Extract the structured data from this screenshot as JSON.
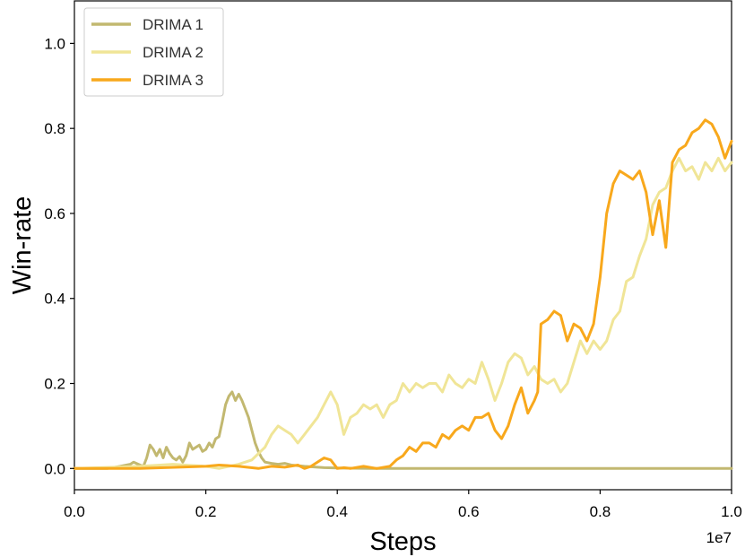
{
  "chart_data": {
    "type": "line",
    "xlabel": "Steps",
    "ylabel": "Win-rate",
    "x_offset_label": "1e7",
    "xlim": [
      0.0,
      1.0
    ],
    "ylim": [
      -0.05,
      1.1
    ],
    "x_ticks": [
      "0.0",
      "0.2",
      "0.4",
      "0.6",
      "0.8",
      "1.0"
    ],
    "y_ticks": [
      "0.0",
      "0.2",
      "0.4",
      "0.6",
      "0.8",
      "1.0"
    ],
    "grid": false,
    "legend_position": "top-left",
    "series": [
      {
        "name": "DRIMA 1",
        "color": "#c2b870",
        "x": [
          0.0,
          0.05,
          0.07,
          0.085,
          0.09,
          0.1,
          0.105,
          0.11,
          0.115,
          0.12,
          0.125,
          0.13,
          0.135,
          0.14,
          0.145,
          0.15,
          0.155,
          0.16,
          0.165,
          0.17,
          0.175,
          0.18,
          0.185,
          0.19,
          0.195,
          0.2,
          0.205,
          0.21,
          0.215,
          0.22,
          0.225,
          0.23,
          0.235,
          0.24,
          0.245,
          0.25,
          0.255,
          0.26,
          0.265,
          0.27,
          0.275,
          0.28,
          0.285,
          0.29,
          0.3,
          0.31,
          0.32,
          0.33,
          0.35,
          0.38,
          0.4,
          0.45,
          0.5,
          0.6,
          0.7,
          0.8,
          0.9,
          1.0
        ],
        "values": [
          0.0,
          0.0,
          0.005,
          0.01,
          0.015,
          0.008,
          0.005,
          0.025,
          0.055,
          0.045,
          0.03,
          0.045,
          0.025,
          0.05,
          0.035,
          0.025,
          0.02,
          0.028,
          0.015,
          0.03,
          0.06,
          0.045,
          0.05,
          0.055,
          0.04,
          0.045,
          0.06,
          0.05,
          0.07,
          0.075,
          0.11,
          0.15,
          0.17,
          0.18,
          0.16,
          0.175,
          0.16,
          0.14,
          0.12,
          0.09,
          0.06,
          0.04,
          0.025,
          0.015,
          0.012,
          0.01,
          0.012,
          0.008,
          0.005,
          0.002,
          0.001,
          0.0,
          0.0,
          0.0,
          0.0,
          0.0,
          0.0,
          0.0
        ]
      },
      {
        "name": "DRIMA 2",
        "color": "#f0e597",
        "x": [
          0.0,
          0.1,
          0.15,
          0.2,
          0.22,
          0.25,
          0.27,
          0.29,
          0.3,
          0.31,
          0.32,
          0.33,
          0.34,
          0.35,
          0.36,
          0.37,
          0.38,
          0.39,
          0.4,
          0.41,
          0.42,
          0.43,
          0.44,
          0.45,
          0.46,
          0.47,
          0.48,
          0.49,
          0.5,
          0.51,
          0.52,
          0.53,
          0.54,
          0.55,
          0.56,
          0.57,
          0.58,
          0.59,
          0.6,
          0.61,
          0.62,
          0.63,
          0.64,
          0.65,
          0.66,
          0.67,
          0.68,
          0.69,
          0.7,
          0.71,
          0.72,
          0.73,
          0.74,
          0.75,
          0.76,
          0.77,
          0.78,
          0.79,
          0.8,
          0.81,
          0.82,
          0.83,
          0.84,
          0.85,
          0.86,
          0.87,
          0.88,
          0.89,
          0.9,
          0.91,
          0.92,
          0.93,
          0.94,
          0.95,
          0.96,
          0.97,
          0.98,
          0.99,
          1.0
        ],
        "values": [
          0.0,
          0.005,
          0.01,
          0.005,
          0.0,
          0.01,
          0.02,
          0.05,
          0.08,
          0.1,
          0.09,
          0.08,
          0.06,
          0.08,
          0.1,
          0.12,
          0.15,
          0.18,
          0.15,
          0.08,
          0.12,
          0.13,
          0.15,
          0.14,
          0.15,
          0.12,
          0.15,
          0.16,
          0.2,
          0.18,
          0.2,
          0.19,
          0.2,
          0.2,
          0.18,
          0.22,
          0.2,
          0.19,
          0.21,
          0.2,
          0.25,
          0.21,
          0.16,
          0.2,
          0.25,
          0.27,
          0.26,
          0.22,
          0.24,
          0.21,
          0.2,
          0.21,
          0.18,
          0.2,
          0.25,
          0.3,
          0.27,
          0.3,
          0.28,
          0.3,
          0.35,
          0.37,
          0.44,
          0.45,
          0.5,
          0.54,
          0.62,
          0.65,
          0.66,
          0.7,
          0.73,
          0.7,
          0.71,
          0.68,
          0.72,
          0.7,
          0.73,
          0.7,
          0.72
        ]
      },
      {
        "name": "DRIMA 3",
        "color": "#f8a81c",
        "x": [
          0.0,
          0.1,
          0.2,
          0.22,
          0.25,
          0.28,
          0.3,
          0.32,
          0.34,
          0.35,
          0.36,
          0.38,
          0.39,
          0.4,
          0.41,
          0.42,
          0.44,
          0.46,
          0.48,
          0.49,
          0.5,
          0.51,
          0.52,
          0.53,
          0.54,
          0.55,
          0.56,
          0.57,
          0.58,
          0.59,
          0.6,
          0.61,
          0.62,
          0.63,
          0.64,
          0.65,
          0.66,
          0.67,
          0.68,
          0.69,
          0.7,
          0.705,
          0.71,
          0.72,
          0.73,
          0.74,
          0.75,
          0.76,
          0.77,
          0.78,
          0.79,
          0.8,
          0.81,
          0.82,
          0.83,
          0.84,
          0.85,
          0.86,
          0.87,
          0.88,
          0.89,
          0.9,
          0.91,
          0.92,
          0.93,
          0.94,
          0.95,
          0.96,
          0.97,
          0.98,
          0.99,
          1.0
        ],
        "values": [
          0.0,
          0.0,
          0.005,
          0.008,
          0.005,
          0.0,
          0.005,
          0.003,
          0.008,
          0.0,
          0.005,
          0.025,
          0.02,
          0.0,
          0.002,
          0.0,
          0.005,
          0.0,
          0.005,
          0.02,
          0.03,
          0.05,
          0.04,
          0.06,
          0.06,
          0.05,
          0.08,
          0.07,
          0.09,
          0.1,
          0.09,
          0.12,
          0.12,
          0.13,
          0.09,
          0.07,
          0.1,
          0.15,
          0.19,
          0.13,
          0.16,
          0.18,
          0.34,
          0.35,
          0.37,
          0.36,
          0.3,
          0.34,
          0.33,
          0.3,
          0.34,
          0.45,
          0.6,
          0.67,
          0.7,
          0.69,
          0.68,
          0.7,
          0.65,
          0.55,
          0.63,
          0.52,
          0.72,
          0.75,
          0.76,
          0.79,
          0.8,
          0.82,
          0.81,
          0.78,
          0.73,
          0.77
        ]
      }
    ]
  }
}
